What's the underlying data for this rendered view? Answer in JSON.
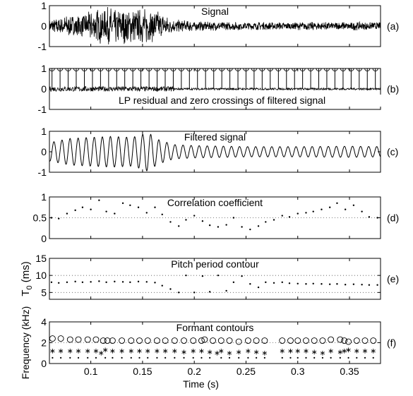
{
  "chart_data": [
    {
      "id": "a",
      "type": "line",
      "title": "Signal",
      "panel_label": "(a)",
      "ylim": [
        -1,
        1
      ],
      "yticks": [
        "-1",
        "0",
        "1"
      ],
      "description_only": false,
      "envelope": [
        {
          "t": 0.06,
          "amp": 0.35
        },
        {
          "t": 0.075,
          "amp": 0.55
        },
        {
          "t": 0.09,
          "amp": 0.6
        },
        {
          "t": 0.105,
          "amp": 0.85
        },
        {
          "t": 0.115,
          "amp": 0.95
        },
        {
          "t": 0.125,
          "amp": 0.9
        },
        {
          "t": 0.14,
          "amp": 0.85
        },
        {
          "t": 0.155,
          "amp": 0.9
        },
        {
          "t": 0.165,
          "amp": 0.75
        },
        {
          "t": 0.18,
          "amp": 0.35
        },
        {
          "t": 0.2,
          "amp": 0.25
        },
        {
          "t": 0.25,
          "amp": 0.2
        },
        {
          "t": 0.3,
          "amp": 0.2
        },
        {
          "t": 0.35,
          "amp": 0.22
        },
        {
          "t": 0.38,
          "amp": 0.18
        }
      ]
    },
    {
      "id": "b",
      "type": "stem",
      "title": "LP residual and zero crossings of filtered signal",
      "panel_label": "(b)",
      "ylim": [
        -1,
        1
      ],
      "yticks": [
        "-1",
        "0",
        "1"
      ],
      "stem_times": [
        0.0625,
        0.0703,
        0.0781,
        0.0859,
        0.0938,
        0.1016,
        0.1094,
        0.1172,
        0.125,
        0.1328,
        0.1406,
        0.1484,
        0.1563,
        0.1641,
        0.1719,
        0.1797,
        0.1875,
        0.1953,
        0.2031,
        0.2109,
        0.2188,
        0.2266,
        0.2344,
        0.2422,
        0.25,
        0.2578,
        0.2656,
        0.2734,
        0.2813,
        0.2891,
        0.2969,
        0.3047,
        0.3125,
        0.3203,
        0.3281,
        0.3359,
        0.3438,
        0.3516,
        0.3594,
        0.3672,
        0.375
      ],
      "stem_value": 1
    },
    {
      "id": "c",
      "type": "line",
      "title": "Filtered signal",
      "panel_label": "(c)",
      "ylim": [
        -1,
        1
      ],
      "yticks": [
        "-1",
        "0",
        "1"
      ],
      "envelope": [
        {
          "t": 0.06,
          "amp": 0.45
        },
        {
          "t": 0.08,
          "amp": 0.65
        },
        {
          "t": 0.1,
          "amp": 0.7
        },
        {
          "t": 0.12,
          "amp": 0.75
        },
        {
          "t": 0.14,
          "amp": 0.7
        },
        {
          "t": 0.15,
          "amp": 0.85
        },
        {
          "t": 0.155,
          "amp": 0.95
        },
        {
          "t": 0.165,
          "amp": 0.6
        },
        {
          "t": 0.18,
          "amp": 0.35
        },
        {
          "t": 0.2,
          "amp": 0.3
        },
        {
          "t": 0.25,
          "amp": 0.25
        },
        {
          "t": 0.3,
          "amp": 0.25
        },
        {
          "t": 0.35,
          "amp": 0.27
        },
        {
          "t": 0.38,
          "amp": 0.25
        }
      ]
    },
    {
      "id": "d",
      "type": "scatter",
      "title": "Correlation coefficient",
      "panel_label": "(d)",
      "ylim": [
        0,
        1
      ],
      "yticks": [
        "0",
        "0.5",
        "1"
      ],
      "gridlines": [
        0.5
      ],
      "x": [
        0.062,
        0.069,
        0.077,
        0.085,
        0.092,
        0.1,
        0.108,
        0.115,
        0.123,
        0.131,
        0.138,
        0.146,
        0.154,
        0.162,
        0.169,
        0.177,
        0.185,
        0.192,
        0.2,
        0.208,
        0.215,
        0.223,
        0.231,
        0.238,
        0.246,
        0.254,
        0.262,
        0.269,
        0.277,
        0.285,
        0.292,
        0.3,
        0.308,
        0.315,
        0.323,
        0.331,
        0.338,
        0.346,
        0.354,
        0.362,
        0.369,
        0.377
      ],
      "y": [
        0.5,
        0.48,
        0.6,
        0.68,
        0.75,
        0.7,
        0.92,
        0.65,
        0.6,
        0.85,
        0.8,
        0.75,
        0.62,
        0.75,
        0.58,
        0.4,
        0.3,
        0.45,
        0.55,
        0.42,
        0.32,
        0.28,
        0.33,
        0.5,
        0.28,
        0.22,
        0.3,
        0.4,
        0.45,
        0.55,
        0.52,
        0.6,
        0.62,
        0.65,
        0.7,
        0.75,
        0.85,
        0.7,
        0.8,
        0.65,
        0.52,
        0.5
      ]
    },
    {
      "id": "e",
      "type": "scatter",
      "title": "Pitch period contour",
      "panel_label": "(e)",
      "ylabel": "T",
      "ylabel_sub": "0",
      "ylabel_unit": " (ms)",
      "ylim": [
        3,
        15
      ],
      "yticks": [
        "5",
        "10",
        "15"
      ],
      "ytick_values": [
        5,
        10,
        15
      ],
      "gridlines": [
        5,
        10
      ],
      "x": [
        0.062,
        0.069,
        0.077,
        0.085,
        0.092,
        0.1,
        0.108,
        0.115,
        0.123,
        0.131,
        0.138,
        0.146,
        0.154,
        0.162,
        0.169,
        0.177,
        0.185,
        0.192,
        0.2,
        0.208,
        0.215,
        0.223,
        0.231,
        0.238,
        0.246,
        0.254,
        0.262,
        0.269,
        0.277,
        0.285,
        0.292,
        0.3,
        0.308,
        0.315,
        0.323,
        0.331,
        0.338,
        0.346,
        0.354,
        0.362,
        0.369,
        0.377
      ],
      "y": [
        8.0,
        7.8,
        8.0,
        8.2,
        8.0,
        8.1,
        8.3,
        8.0,
        8.2,
        8.1,
        8.0,
        8.2,
        8.1,
        7.9,
        7.0,
        6.0,
        5.0,
        10.0,
        5.0,
        9.8,
        5.2,
        10.0,
        5.5,
        8.0,
        9.8,
        7.5,
        6.5,
        8.0,
        7.8,
        8.0,
        7.7,
        7.6,
        7.5,
        7.6,
        7.5,
        7.4,
        7.5,
        7.3,
        7.4,
        7.3,
        7.2,
        7.2
      ]
    },
    {
      "id": "f",
      "type": "scatter",
      "title": "Formant contours",
      "panel_label": "(f)",
      "ylabel": "Frequency (kHz)",
      "xlabel": "Time (s)",
      "ylim": [
        0,
        4
      ],
      "yticks": [
        "0",
        "2",
        "4"
      ],
      "ytick_values": [
        0,
        2,
        4
      ],
      "xlim": [
        0.06,
        0.38
      ],
      "xticks": [
        "0.1",
        "0.15",
        "0.2",
        "0.25",
        "0.3",
        "0.35"
      ],
      "xtick_values": [
        0.1,
        0.15,
        0.2,
        0.25,
        0.3,
        0.35
      ],
      "gridlines": [
        2
      ],
      "series": [
        {
          "marker": "circle",
          "x": [
            0.063,
            0.071,
            0.08,
            0.088,
            0.097,
            0.105,
            0.112,
            0.116,
            0.121,
            0.13,
            0.139,
            0.147,
            0.155,
            0.164,
            0.172,
            0.181,
            0.19,
            0.199,
            0.207,
            0.21,
            0.218,
            0.226,
            0.234,
            0.243,
            0.252,
            0.26,
            0.268,
            0.285,
            0.293,
            0.3,
            0.308,
            0.316,
            0.324,
            0.332,
            0.341,
            0.345,
            0.349,
            0.357,
            0.365,
            0.373
          ],
          "y": [
            2.4,
            2.4,
            2.3,
            2.3,
            2.3,
            2.3,
            2.2,
            2.2,
            2.2,
            2.2,
            2.2,
            2.2,
            2.2,
            2.2,
            2.2,
            2.2,
            2.2,
            2.2,
            2.2,
            2.3,
            2.2,
            2.2,
            2.2,
            2.1,
            2.2,
            2.2,
            2.2,
            2.2,
            2.2,
            2.2,
            2.2,
            2.2,
            2.2,
            2.3,
            2.3,
            2.2,
            2.1,
            2.2,
            2.2,
            2.2
          ]
        },
        {
          "marker": "asterisk",
          "x": [
            0.063,
            0.071,
            0.08,
            0.088,
            0.097,
            0.105,
            0.11,
            0.114,
            0.121,
            0.13,
            0.139,
            0.147,
            0.155,
            0.164,
            0.172,
            0.181,
            0.19,
            0.199,
            0.207,
            0.215,
            0.222,
            0.226,
            0.234,
            0.243,
            0.252,
            0.26,
            0.268,
            0.285,
            0.293,
            0.3,
            0.308,
            0.316,
            0.324,
            0.332,
            0.341,
            0.345,
            0.349,
            0.357,
            0.365,
            0.373
          ],
          "y": [
            1.2,
            1.2,
            1.2,
            1.2,
            1.2,
            1.2,
            1.0,
            1.3,
            1.2,
            1.2,
            1.2,
            1.2,
            1.2,
            1.2,
            1.2,
            1.2,
            1.1,
            1.2,
            1.2,
            1.1,
            1.0,
            1.2,
            1.0,
            1.1,
            1.2,
            1.1,
            1.0,
            1.2,
            1.2,
            1.2,
            1.2,
            1.1,
            1.0,
            1.2,
            1.1,
            1.2,
            1.3,
            1.2,
            1.2,
            1.2
          ]
        },
        {
          "marker": "dot",
          "x": [
            0.063,
            0.071,
            0.08,
            0.088,
            0.097,
            0.105,
            0.114,
            0.121,
            0.13,
            0.139,
            0.147,
            0.155,
            0.164,
            0.172,
            0.181,
            0.19,
            0.199,
            0.207,
            0.215,
            0.226,
            0.234,
            0.243,
            0.252,
            0.26,
            0.268,
            0.285,
            0.293,
            0.3,
            0.308,
            0.316,
            0.324,
            0.332,
            0.341,
            0.349,
            0.357,
            0.365,
            0.373
          ],
          "y": [
            0.55,
            0.55,
            0.55,
            0.55,
            0.55,
            0.55,
            0.55,
            0.55,
            0.55,
            0.55,
            0.55,
            0.55,
            0.55,
            0.55,
            0.55,
            0.55,
            0.55,
            0.55,
            0.55,
            0.55,
            0.55,
            0.55,
            0.55,
            0.55,
            0.55,
            0.55,
            0.55,
            0.55,
            0.55,
            0.55,
            0.55,
            0.55,
            0.55,
            0.55,
            0.55,
            0.55,
            0.55
          ]
        }
      ]
    }
  ]
}
